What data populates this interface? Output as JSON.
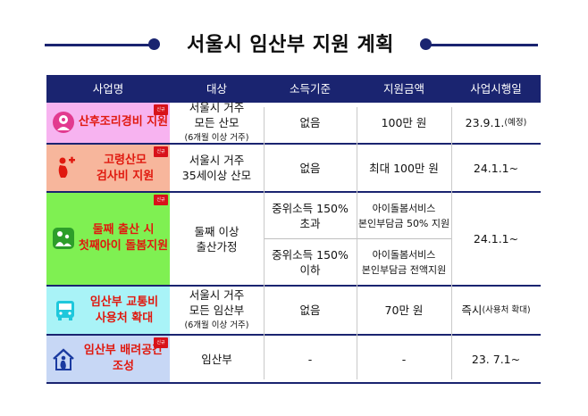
{
  "title": "서울시 임산부 지원 계획",
  "badge_text": "신규",
  "header": [
    "사업명",
    "대상",
    "소득기준",
    "지원금액",
    "사업시행일"
  ],
  "rows": {
    "r1": {
      "name": "산후조리경비 지원",
      "target_l1": "서울시 거주",
      "target_l2": "모든 산모",
      "target_note": "(6개월 이상 거주)",
      "income": "없음",
      "amount": "100만 원",
      "date": "23.9.1.",
      "date_note": "(예정)",
      "icon": "mother-baby-icon"
    },
    "r2": {
      "name_l1": "고령산모",
      "name_l2": "검사비 지원",
      "target_l1": "서울시 거주",
      "target_l2": "35세이상 산모",
      "income": "없음",
      "amount": "최대 100만 원",
      "date": "24.1.1~",
      "icon": "pregnant-medical-icon"
    },
    "r3": {
      "name_l1": "둘째 출산 시",
      "name_l2": "첫째아이 돌봄지원",
      "target_l1": "둘째 이상",
      "target_l2": "출산가정",
      "sub1_income_l1": "중위소득 150%",
      "sub1_income_l2": "초과",
      "sub1_amount_l1": "아이돌봄서비스",
      "sub1_amount_l2": "본인부담금 50% 지원",
      "sub2_income_l1": "중위소득 150%",
      "sub2_income_l2": "이하",
      "sub2_amount_l1": "아이돌봄서비스",
      "sub2_amount_l2": "본인부담금 전액지원",
      "date": "24.1.1~",
      "icon": "child-care-icon"
    },
    "r4": {
      "name_l1": "임산부 교통비",
      "name_l2": "사용처 확대",
      "target_l1": "서울시 거주",
      "target_l2": "모든 임산부",
      "target_note": "(6개월 이상 거주)",
      "income": "없음",
      "amount": "70만 원",
      "date": "즉시",
      "date_note": "(사용처 확대)",
      "icon": "bus-icon"
    },
    "r5": {
      "name_l1": "임산부 배려공간",
      "name_l2": "조성",
      "target": "임산부",
      "income": "-",
      "amount": "-",
      "date": "23. 7.1~",
      "icon": "pregnant-house-icon"
    }
  },
  "colors": {
    "navy": "#1a2470",
    "name_red": "#e0190f",
    "r1_bg": "#f7b3f0",
    "r2_bg": "#f7b69c",
    "r3_bg": "#7ff052",
    "r4_bg": "#a9f3f7",
    "r5_bg": "#c7d7f5"
  }
}
